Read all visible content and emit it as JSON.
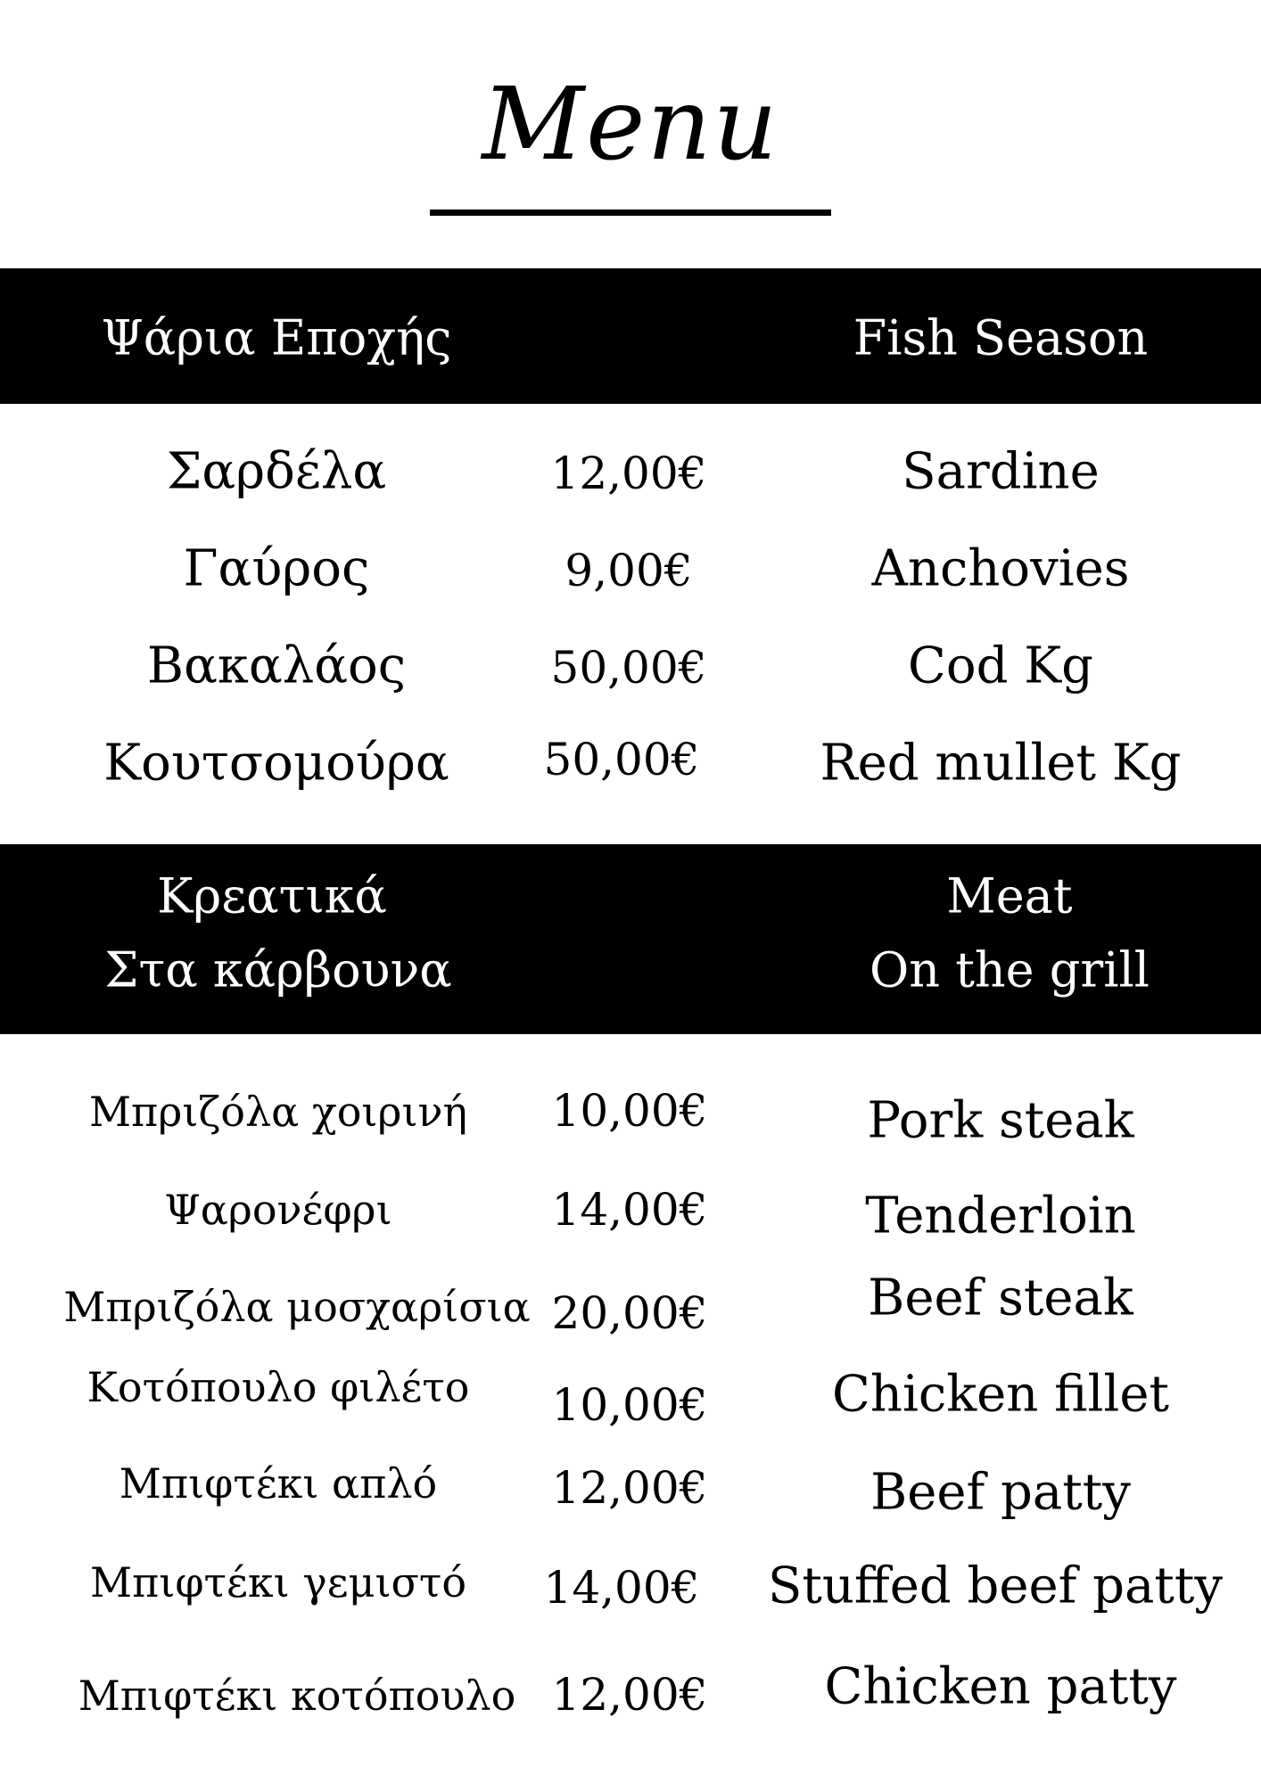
{
  "title": "Menu",
  "sections": [
    {
      "header_gr": [
        "Ψάρια Εποχής"
      ],
      "header_en": [
        "Fish Season"
      ],
      "items": [
        {
          "gr": "Σαρδέλα",
          "price": "12,00€",
          "en": "Sardine"
        },
        {
          "gr": "Γαύρος",
          "price": "9,00€",
          "en": "Anchovies"
        },
        {
          "gr": "Βακαλάος",
          "price": "50,00€",
          "en": "Cod Kg"
        },
        {
          "gr": "Κουτσομούρα",
          "price": "50,00€",
          "en": "Red mullet Kg"
        }
      ]
    },
    {
      "header_gr": [
        "Κρεατικά",
        "Στα κάρβουνα"
      ],
      "header_en": [
        "Meat",
        "On the grill"
      ],
      "items": [
        {
          "gr": "Μπριζόλα χοιρινή",
          "price": "10,00€",
          "en": "Pork steak"
        },
        {
          "gr": "Ψαρονέφρι",
          "price": "14,00€",
          "en": "Tenderloin"
        },
        {
          "gr": "Μπριζόλα μοσχαρίσια",
          "price": "20,00€",
          "en": "Beef steak"
        },
        {
          "gr": "Κοτόπουλο φιλέτο",
          "price": "10,00€",
          "en": "Chicken fillet"
        },
        {
          "gr": "Μπιφτέκι απλό",
          "price": "12,00€",
          "en": "Beef patty"
        },
        {
          "gr": "Μπιφτέκι γεμιστό",
          "price": "14,00€",
          "en": "Stuffed beef patty"
        },
        {
          "gr": "Μπιφτέκι κοτόπουλο",
          "price": "12,00€",
          "en": "Chicken patty"
        }
      ]
    }
  ]
}
